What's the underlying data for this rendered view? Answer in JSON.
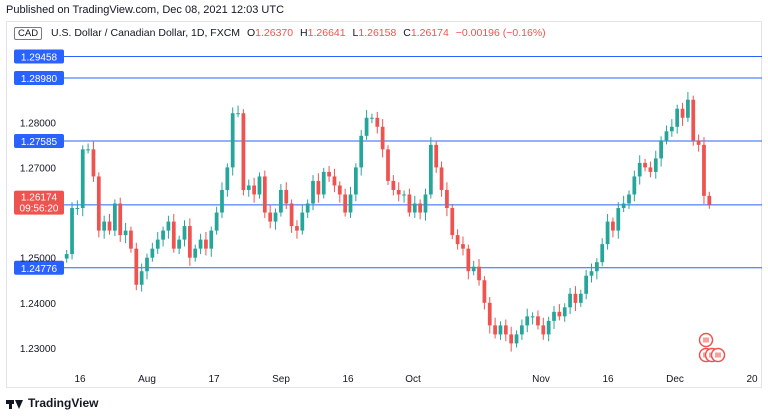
{
  "header": {
    "published": "Published on TradingView.com, Dec 08, 2021 12:03 UTC"
  },
  "legend": {
    "symbol": "CAD",
    "title": "U.S. Dollar / Canadian Dollar, 1D, FXCM",
    "o_label": "O",
    "o_value": "1.26370",
    "h_label": "H",
    "h_value": "1.26641",
    "l_label": "L",
    "l_value": "1.26158",
    "c_label": "C",
    "c_value": "1.26174",
    "change": "−0.00196 (−0.16%)"
  },
  "footer": {
    "brand": "TradingView"
  },
  "icons": {
    "logo": "tradingview-logo-icon",
    "flags": "event-flags-icon"
  },
  "colors": {
    "up": "#26a69a",
    "down": "#ef5350",
    "level_line": "#2962ff",
    "label_bg": "#2962ff",
    "price_bg": "#ef5350"
  },
  "chart_data": {
    "type": "candlestick",
    "x_tick_labels": [
      "16",
      "Aug",
      "17",
      "Sep",
      "16",
      "Oct",
      "Nov",
      "16",
      "Dec",
      "20"
    ],
    "y_tick_labels": [
      "1.23000",
      "1.24000",
      "1.25000",
      "1.27000",
      "1.28000"
    ],
    "ylim": [
      1.226,
      1.3
    ],
    "horizontal_levels": [
      "1.29458",
      "1.28980",
      "1.27585",
      "1.26171",
      "1.24776"
    ],
    "current_price": {
      "value": "1.26174",
      "countdown": "09:56:20"
    },
    "ohlc_first": [
      1.2498,
      1.2515,
      1.246,
      1.2508
    ],
    "closes": [
      1.2508,
      1.261,
      1.261,
      1.274,
      1.274,
      1.268,
      1.256,
      1.258,
      1.256,
      1.262,
      1.255,
      1.256,
      1.252,
      1.244,
      1.247,
      1.25,
      1.252,
      1.254,
      1.256,
      1.258,
      1.252,
      1.254,
      1.257,
      1.25,
      1.252,
      1.254,
      1.252,
      1.256,
      1.26,
      1.265,
      1.27,
      1.282,
      1.282,
      1.265,
      1.266,
      1.264,
      1.268,
      1.26,
      1.258,
      1.26,
      1.265,
      1.262,
      1.257,
      1.256,
      1.26,
      1.262,
      1.267,
      1.264,
      1.269,
      1.268,
      1.266,
      1.264,
      1.26,
      1.264,
      1.27,
      1.277,
      1.281,
      1.281,
      1.279,
      1.274,
      1.267,
      1.265,
      1.264,
      1.264,
      1.26,
      1.262,
      1.26,
      1.264,
      1.275,
      1.27,
      1.265,
      1.261,
      1.255,
      1.253,
      1.252,
      1.247,
      1.248,
      1.245,
      1.24,
      1.235,
      1.233,
      1.235,
      1.233,
      1.231,
      1.233,
      1.235,
      1.237,
      1.237,
      1.235,
      1.233,
      1.236,
      1.238,
      1.237,
      1.239,
      1.242,
      1.24,
      1.242,
      1.246,
      1.247,
      1.249,
      1.253,
      1.258,
      1.256,
      1.261,
      1.262,
      1.264,
      1.268,
      1.271,
      1.27,
      1.269,
      1.272,
      1.276,
      1.278,
      1.279,
      1.283,
      1.281,
      1.285,
      1.276,
      1.275,
      1.2637,
      1.26174
    ]
  }
}
